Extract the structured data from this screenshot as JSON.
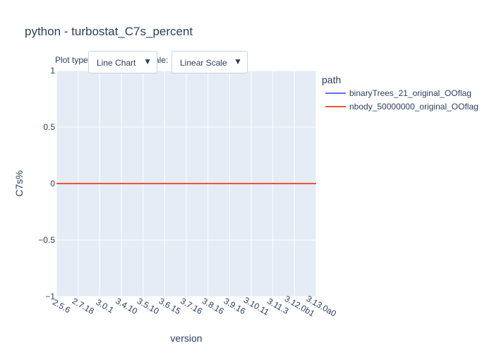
{
  "chart_data": {
    "type": "line",
    "title": "python - turbostat_C7s_percent",
    "xlabel": "version",
    "ylabel": "C7s%",
    "categories": [
      "2.5.6",
      "2.7.18",
      "3.0.1",
      "3.4.10",
      "3.5.10",
      "3.6.15",
      "3.7.16",
      "3.8.16",
      "3.9.16",
      "3.10.11",
      "3.11.3",
      "3.12.0b1",
      "3.13.0a0"
    ],
    "ylim": [
      -1,
      1
    ],
    "yticks": [
      1,
      0.5,
      0,
      -0.5,
      -1
    ],
    "ytick_labels": [
      "1",
      "0.5",
      "0",
      "−0.5",
      "−1"
    ],
    "grid": true,
    "legend_title": "path",
    "legend_position": "top-right",
    "series": [
      {
        "name": "binaryTrees_21_original_OOflag",
        "color": "#636efa",
        "values": [
          0,
          0,
          0,
          0,
          0,
          0,
          0,
          0,
          0,
          0,
          0,
          0,
          0
        ]
      },
      {
        "name": "nbody_50000000_original_OOflag",
        "color": "#ef553b",
        "values": [
          0,
          0,
          0,
          0,
          0,
          0,
          0,
          0,
          0,
          0,
          0,
          0,
          0
        ]
      }
    ],
    "plot_bg": "#e5ecf6",
    "grid_color": "#ffffff"
  },
  "controls": {
    "plot_type_label": "Plot type:",
    "plot_type_value": "Line Chart",
    "scale_label": "Scale:",
    "scale_value": "Linear Scale",
    "arrow_glyph": "▼"
  }
}
